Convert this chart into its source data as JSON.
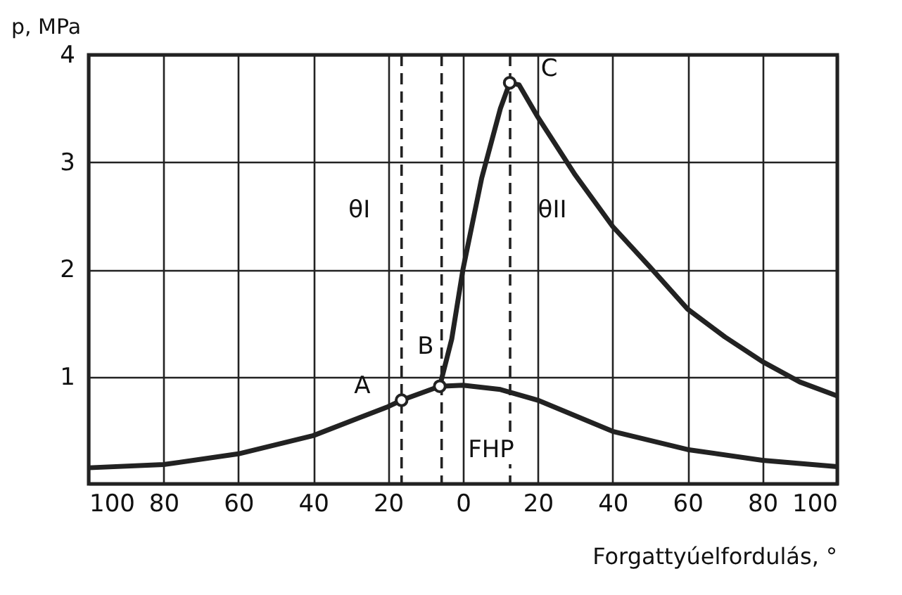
{
  "chart_data": {
    "type": "line",
    "xlabel": "Forgattyúelfordulás, °",
    "ylabel": "p, MPa",
    "xlim": [
      -100,
      100
    ],
    "xticks": [
      {
        "value": -100,
        "label": "100"
      },
      {
        "value": -80,
        "label": "80"
      },
      {
        "value": -60,
        "label": "60"
      },
      {
        "value": -40,
        "label": "40"
      },
      {
        "value": -20,
        "label": "20"
      },
      0,
      20,
      40,
      60,
      80,
      100
    ],
    "ylim": [
      0,
      4
    ],
    "yticks": [
      {
        "value": 0,
        "label": null
      },
      1,
      2,
      3,
      4
    ],
    "grid": true,
    "line_style": "solid",
    "series": [
      {
        "color": "#222222",
        "x": [
          -100,
          -80,
          -60,
          -40,
          -20,
          -16.4,
          -6.2,
          0,
          10,
          20,
          40,
          60,
          80,
          100
        ],
        "values": [
          0.15,
          0.18,
          0.28,
          0.45,
          0.72,
          0.78,
          0.91,
          0.92,
          0.88,
          0.78,
          0.49,
          0.32,
          0.22,
          0.16
        ]
      },
      {
        "color": "#222222",
        "x": [
          -6.2,
          -3,
          0,
          5,
          10,
          12.5,
          15,
          20,
          30,
          40,
          50,
          60,
          70,
          80,
          90,
          100
        ],
        "values": [
          0.91,
          1.35,
          2.0,
          2.85,
          3.5,
          3.74,
          3.72,
          3.42,
          2.88,
          2.4,
          2.02,
          1.63,
          1.37,
          1.14,
          0.95,
          0.82
        ]
      },
      {
        "type": "scatter",
        "marker": "circle",
        "color": "#222222",
        "x": [
          -16.4,
          -6.2,
          12.5
        ],
        "values": [
          0.78,
          0.91,
          3.74
        ]
      }
    ],
    "ref_lines": [
      {
        "axis": "x",
        "value": -16.4,
        "line_style": "dashed",
        "color": "#222222"
      },
      {
        "axis": "x",
        "value": -5.7,
        "line_style": "dashed",
        "color": "#222222"
      },
      {
        "axis": "x",
        "value": 12.6,
        "line_style": "dashed",
        "color": "#222222"
      }
    ],
    "annotations": [
      {
        "text": "A",
        "x": -16.4,
        "y": 0.78
      },
      {
        "text": "B",
        "x": -6.2,
        "y": 0.91
      },
      {
        "text": "C",
        "x": 12.5,
        "y": 3.74
      },
      "FHP",
      {
        "text": "θI",
        "x": -16.4,
        "y": 2.37
      },
      {
        "text": "θII",
        "x": 12.6,
        "y": 2.37
      }
    ]
  }
}
